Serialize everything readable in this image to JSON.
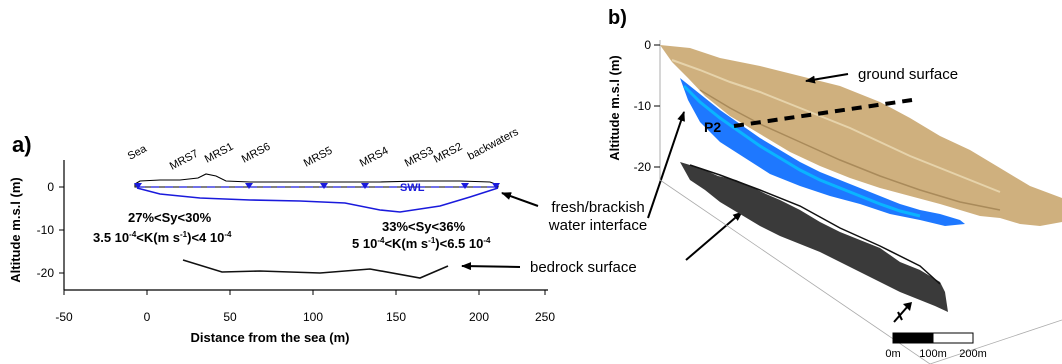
{
  "panel_a": {
    "label": "a)",
    "ylabel": "Altitude m.s.l (m)",
    "xlabel": "Distance from the sea (m)",
    "xticks": [
      "-50",
      "0",
      "50",
      "100",
      "150",
      "200",
      "250"
    ],
    "yticks": [
      "0",
      "-10",
      "-20"
    ],
    "site_labels": [
      "Sea",
      "MRS7",
      "MRS1",
      "MRS6",
      "MRS5",
      "MRS4",
      "MRS3",
      "MRS2",
      "backwaters"
    ],
    "swl_label": "SWL",
    "left_zone": {
      "sy": "27%<Sy<30%",
      "k_pre": "3.5 10",
      "k_exp1": "-4",
      "k_mid": "<K(m s",
      "k_exp2": "-1",
      "k_mid2": ")<4 10",
      "k_exp3": "-4"
    },
    "right_zone": {
      "sy": "33%<Sy<36%",
      "k_pre": "5 10",
      "k_exp1": "-4",
      "k_mid": "<K(m s",
      "k_exp2": "-1",
      "k_mid2": ")<6.5 10",
      "k_exp3": "-4"
    }
  },
  "annotations": {
    "fresh_line1": "fresh/brackish",
    "fresh_line2": "water interface",
    "bedrock": "bedrock surface",
    "ground": "ground surface"
  },
  "panel_b": {
    "label": "b)",
    "ylabel": "Altitude m.s.l (m)",
    "yticks": [
      "0",
      "-10",
      "-20"
    ],
    "profile_label": "P2",
    "scale_labels": [
      "0m",
      "100m",
      "200m"
    ]
  },
  "colors": {
    "interface": "#1a1adc",
    "ground": "#cfb07e",
    "bedrock": "#333333",
    "water": "#1e78ff"
  }
}
